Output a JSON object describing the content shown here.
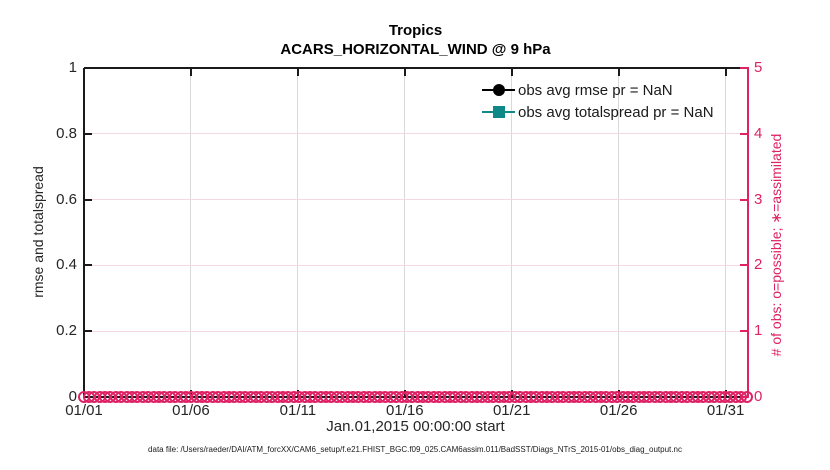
{
  "figure": {
    "title": "Tropics",
    "subtitle": "ACARS_HORIZONTAL_WIND @ 9 hPa",
    "x_axis": {
      "label": "Jan.01,2015 00:00:00 start",
      "tick_labels": [
        "01/01",
        "01/06",
        "01/11",
        "01/16",
        "01/21",
        "01/26",
        "01/31"
      ],
      "tick_days": [
        0,
        5,
        10,
        15,
        20,
        25,
        30
      ],
      "span_days": 31
    },
    "left_axis": {
      "label": "rmse and totalspread",
      "tick_labels": [
        "0",
        "0.2",
        "0.4",
        "0.6",
        "0.8",
        "1"
      ],
      "tick_values": [
        0,
        0.2,
        0.4,
        0.6,
        0.8,
        1
      ],
      "min": 0,
      "max": 1,
      "color": "#1a1a1a"
    },
    "right_axis": {
      "label": "# of obs: o=possible; ∗=assimilated",
      "tick_labels": [
        "0",
        "1",
        "2",
        "3",
        "4",
        "5"
      ],
      "tick_values": [
        0,
        1,
        2,
        3,
        4,
        5
      ],
      "min": 0,
      "max": 5,
      "color": "#de2264"
    },
    "legend": [
      {
        "label": "obs avg rmse pr = NaN",
        "marker": "circle",
        "color": "#000000"
      },
      {
        "label": "obs avg totalspread pr = NaN",
        "marker": "square",
        "color": "#0f8888"
      }
    ],
    "footer": "data file: /Users/raeder/DAI/ATM_forcXX/CAM6_setup/f.e21.FHIST_BGC.f09_025.CAM6assim.011/BadSST/Diags_NTrS_2015-01/obs_diag_output.nc",
    "colors": {
      "grid_vertical": "#d8d8d8",
      "grid_horizontal": "#f4d8e3",
      "axis_black": "#1a1a1a",
      "accent_pink": "#de2264",
      "accent_teal": "#0f8888"
    },
    "obs_markers": {
      "count": 124,
      "value_on_right_axis": 0
    }
  },
  "chart_data": {
    "type": "line",
    "title": "Tropics",
    "subtitle": "ACARS_HORIZONTAL_WIND @ 9 hPa",
    "xlabel": "Jan.01,2015 00:00:00 start",
    "x_tick_labels": [
      "01/01",
      "01/06",
      "01/11",
      "01/16",
      "01/21",
      "01/26",
      "01/31"
    ],
    "x_range_days": [
      0,
      31
    ],
    "left_ylabel": "rmse and totalspread",
    "left_ylim": [
      0,
      1
    ],
    "right_ylabel": "# of obs: o=possible; ∗=assimilated",
    "right_ylim": [
      0,
      5
    ],
    "grid": true,
    "legend_position": "top-right-inside",
    "series": [
      {
        "name": "obs avg rmse pr",
        "axis": "left",
        "value": "NaN",
        "note": "legend entry only, no visible curve"
      },
      {
        "name": "obs avg totalspread pr",
        "axis": "left",
        "value": "NaN",
        "note": "legend entry only, no visible curve"
      },
      {
        "name": "# of obs possible (o)",
        "axis": "right",
        "value_at_every_time": 0,
        "note": "dense pink o markers along y=0 spanning 01/01 to 02/01"
      },
      {
        "name": "# of obs assimilated (∗)",
        "axis": "right",
        "value_at_every_time": 0,
        "note": "dense pink ∗ markers along y=0 spanning 01/01 to 02/01"
      }
    ]
  }
}
